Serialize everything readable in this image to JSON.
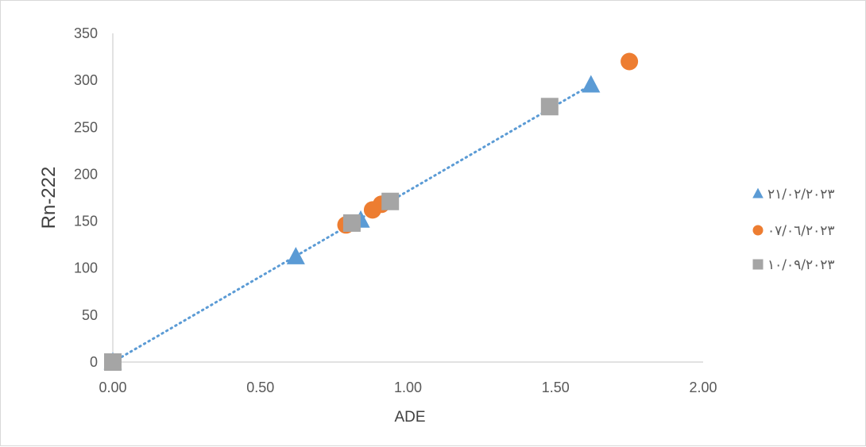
{
  "chart_data": {
    "type": "scatter",
    "title": "",
    "xlabel": "ADE",
    "ylabel": "Rn-222",
    "xlim": [
      0,
      2
    ],
    "ylim": [
      0,
      350
    ],
    "x_ticks": [
      "0.00",
      "0.50",
      "1.00",
      "1.50",
      "2.00"
    ],
    "y_ticks": [
      "0",
      "50",
      "100",
      "150",
      "200",
      "250",
      "300",
      "350"
    ],
    "grid": false,
    "legend_position": "right",
    "series": [
      {
        "name": "٢١/٠٢/٢٠٢٣",
        "marker": "triangle",
        "color": "#5b9bd5",
        "points": [
          [
            0.0,
            0
          ],
          [
            0.62,
            112
          ],
          [
            0.84,
            151
          ],
          [
            1.62,
            295
          ]
        ]
      },
      {
        "name": "٠٧/٠٦/٢٠٢٣",
        "marker": "circle",
        "color": "#ed7d31",
        "points": [
          [
            0.79,
            146
          ],
          [
            0.88,
            162
          ],
          [
            0.91,
            168
          ],
          [
            1.75,
            320
          ]
        ]
      },
      {
        "name": "١٠/٠٩/٢٠٢٣",
        "marker": "square",
        "color": "#a5a5a5",
        "points": [
          [
            0.0,
            0
          ],
          [
            0.81,
            148
          ],
          [
            0.94,
            171
          ],
          [
            1.48,
            272
          ]
        ]
      }
    ],
    "trendline": {
      "style": "dotted",
      "color": "#5b9bd5",
      "from": [
        0.0,
        0
      ],
      "to": [
        1.62,
        295
      ]
    }
  }
}
